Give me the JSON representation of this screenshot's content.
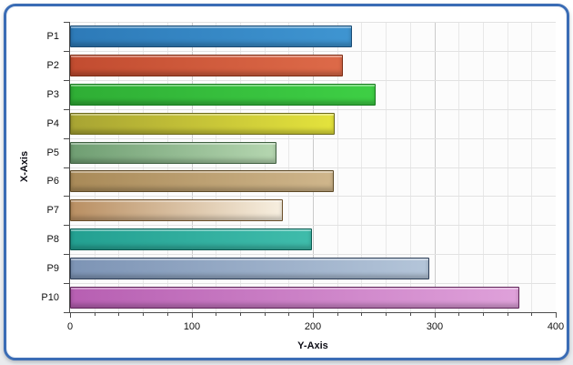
{
  "panel": {
    "border_color": "#3a6cb5",
    "background": "#ffffff"
  },
  "chart_data": {
    "type": "bar",
    "orientation": "horizontal",
    "title": "",
    "categories": [
      "P1",
      "P2",
      "P3",
      "P4",
      "P5",
      "P6",
      "P7",
      "P8",
      "P9",
      "P10"
    ],
    "values": [
      232,
      225,
      252,
      218,
      170,
      217,
      175,
      199,
      296,
      370
    ],
    "axis_titles": {
      "left": "X-Axis",
      "bottom": "Y-Axis"
    },
    "value_axis": {
      "min": 0,
      "max": 400,
      "major_tick": 100,
      "minor_tick": 20,
      "tick_labels": [
        "0",
        "100",
        "200",
        "300",
        "400"
      ]
    },
    "grid": {
      "on": true,
      "minor_color": "#e8e8e8",
      "major_color": "#cbcbcb",
      "row_line_color": "#e2e2e2",
      "plot_background": "#fcfcfc"
    },
    "legend": {
      "visible": false
    },
    "bar_styles": [
      {
        "left": "#2d7ab8",
        "right": "#3f95d1",
        "border": "#1b4b74"
      },
      {
        "left": "#c24c30",
        "right": "#dd6a49",
        "border": "#7c2c14"
      },
      {
        "left": "#2fae35",
        "right": "#3ecf45",
        "border": "#177a1e"
      },
      {
        "left": "#a8a433",
        "right": "#e4e33c",
        "border": "#6b681a"
      },
      {
        "left": "#6f9e72",
        "right": "#b5d6b0",
        "border": "#3f5f40"
      },
      {
        "left": "#a98a58",
        "right": "#cfb68c",
        "border": "#5e4a26"
      },
      {
        "left": "#b98f62",
        "right": "#f7efe0",
        "border": "#6b4f2a"
      },
      {
        "left": "#23a091",
        "right": "#3fbcab",
        "border": "#0d5c52"
      },
      {
        "left": "#7d94b5",
        "right": "#b4c5d9",
        "border": "#2d3e57"
      },
      {
        "left": "#b75fb2",
        "right": "#dfa1da",
        "border": "#5e2458"
      }
    ]
  }
}
